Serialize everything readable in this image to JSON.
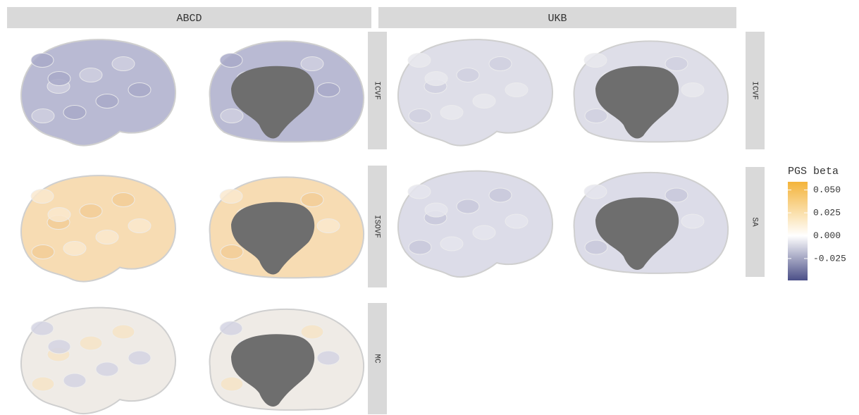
{
  "chart_data": {
    "type": "brain",
    "columns": [
      "ABCD",
      "UKB"
    ],
    "panels": [
      {
        "column": 0,
        "row": 0,
        "label": "ICVF"
      },
      {
        "column": 0,
        "row": 1,
        "label": "ISOVF"
      },
      {
        "column": 0,
        "row": 2,
        "label": "MC"
      },
      {
        "column": 1,
        "row": 0,
        "label": "ICVF"
      },
      {
        "column": 1,
        "row": 1,
        "label": "SA"
      }
    ],
    "legend": {
      "title": "PGS beta",
      "colors": [
        "#4b4f87",
        "#ffffff",
        "#f4b43a"
      ],
      "ylim": [
        -0.049,
        0.059
      ],
      "yticks": [
        {
          "value": 0.05,
          "label": "0.050"
        },
        {
          "value": 0.025,
          "label": "0.025"
        },
        {
          "value": 0,
          "label": "0.000"
        },
        {
          "value": -0.025,
          "label": "-0.025"
        }
      ]
    }
  }
}
